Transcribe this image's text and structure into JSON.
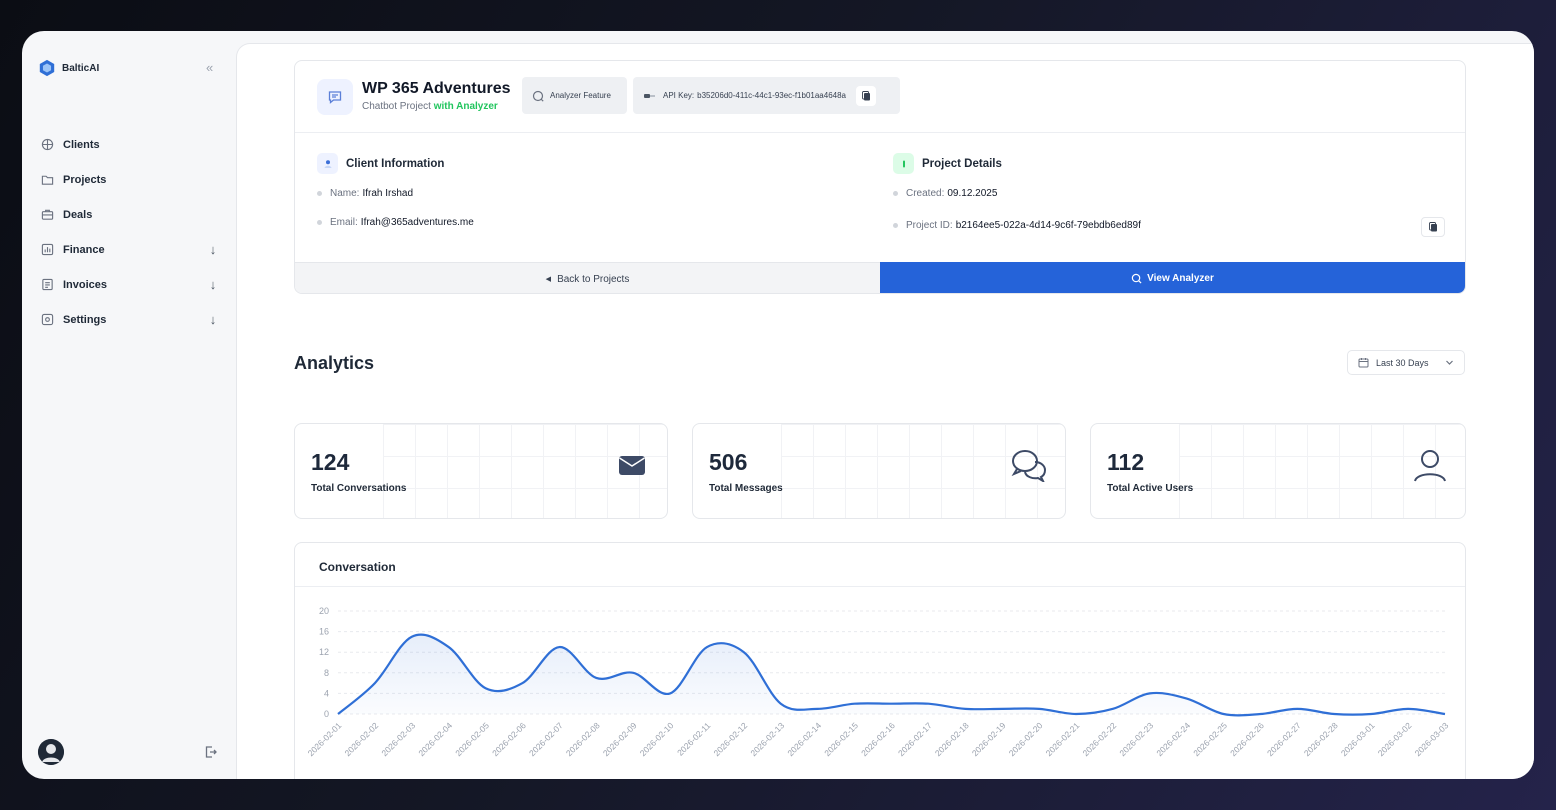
{
  "brand": {
    "name": "BalticAI"
  },
  "nav": [
    {
      "label": "Clients",
      "icon": "clients-icon",
      "arrow": false
    },
    {
      "label": "Projects",
      "icon": "folder-icon",
      "arrow": false
    },
    {
      "label": "Deals",
      "icon": "briefcase-icon",
      "arrow": false
    },
    {
      "label": "Finance",
      "icon": "finance-icon",
      "arrow": true
    },
    {
      "label": "Invoices",
      "icon": "invoice-icon",
      "arrow": true
    },
    {
      "label": "Settings",
      "icon": "settings-icon",
      "arrow": true
    }
  ],
  "project": {
    "title": "WP 365 Adventures",
    "subtitle_prefix": "Chatbot Project",
    "subtitle_highlight": "with Analyzer",
    "analyzer_chip": "Analyzer Feature",
    "api_key_label": "API Key:",
    "api_key": "b35206d0-411c-44c1-93ec-f1b01aa4648a"
  },
  "client_info": {
    "heading": "Client Information",
    "name_label": "Name:",
    "name": "Ifrah Irshad",
    "email_label": "Email:",
    "email": "Ifrah@365adventures.me"
  },
  "project_details": {
    "heading": "Project Details",
    "created_label": "Created:",
    "created": "09.12.2025",
    "id_label": "Project ID:",
    "id": "b2164ee5-022a-4d14-9c6f-79ebdb6ed89f"
  },
  "actions": {
    "back": "Back to Projects",
    "view": "View Analyzer"
  },
  "analytics": {
    "title": "Analytics",
    "range": "Last 30 Days"
  },
  "stats": [
    {
      "value": "124",
      "label": "Total Conversations",
      "icon": "mail-icon"
    },
    {
      "value": "506",
      "label": "Total Messages",
      "icon": "chat-bubbles-icon"
    },
    {
      "value": "112",
      "label": "Total Active Users",
      "icon": "user-icon"
    }
  ],
  "chart_data": {
    "type": "area",
    "title": "Conversation",
    "ylim": [
      0,
      20
    ],
    "yticks": [
      "0",
      "4",
      "8",
      "12",
      "16",
      "20"
    ],
    "x": [
      "2026-02-01",
      "2026-02-02",
      "2026-02-03",
      "2026-02-04",
      "2026-02-05",
      "2026-02-06",
      "2026-02-07",
      "2026-02-08",
      "2026-02-09",
      "2026-02-10",
      "2026-02-11",
      "2026-02-12",
      "2026-02-13",
      "2026-02-14",
      "2026-02-15",
      "2026-02-16",
      "2026-02-17",
      "2026-02-18",
      "2026-02-19",
      "2026-02-20",
      "2026-02-21",
      "2026-02-22",
      "2026-02-23",
      "2026-02-24",
      "2026-02-25",
      "2026-02-26",
      "2026-02-27",
      "2026-02-28",
      "2026-03-01",
      "2026-03-02",
      "2026-03-03"
    ],
    "values": [
      0,
      6,
      15,
      13,
      5,
      6,
      13,
      7,
      8,
      4,
      13,
      12,
      2,
      1,
      2,
      2,
      2,
      1,
      1,
      1,
      0,
      1,
      4,
      3,
      0,
      0,
      1,
      0,
      0,
      1,
      0
    ],
    "color": "#2f6fd6",
    "grid": true
  },
  "colors": {
    "primary": "#2563d9",
    "success": "#22c55e"
  }
}
